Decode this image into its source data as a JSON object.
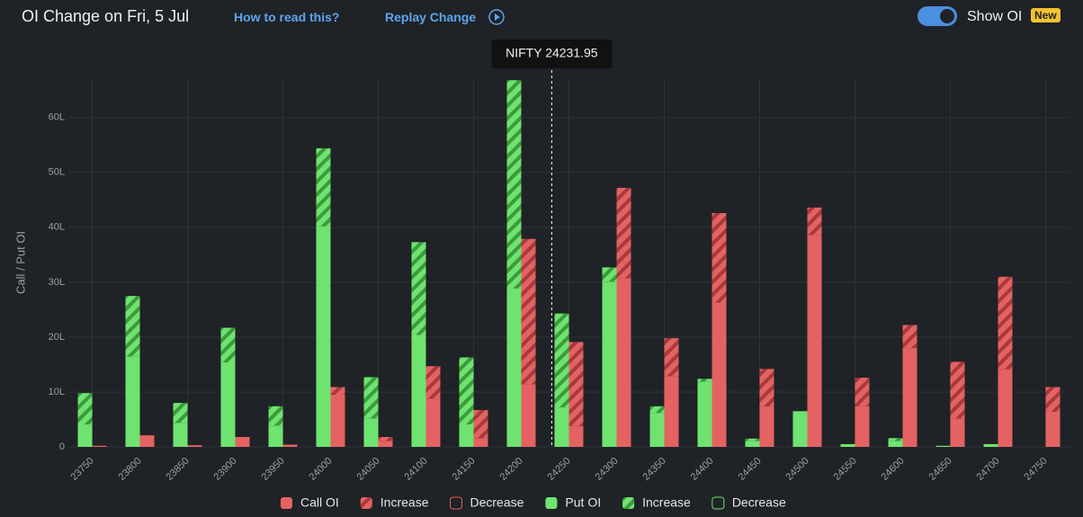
{
  "header": {
    "title": "OI Change on Fri, 5 Jul",
    "help_link": "How to read this?",
    "replay_link": "Replay Change",
    "toggle_label": "Show OI",
    "badge": "New"
  },
  "chart_data": {
    "type": "bar",
    "y_label": "Call / Put OI",
    "categories": [
      "23750",
      "23800",
      "23850",
      "23900",
      "23950",
      "24000",
      "24050",
      "24100",
      "24150",
      "24200",
      "24250",
      "24300",
      "24350",
      "24400",
      "24450",
      "24500",
      "24550",
      "24600",
      "24650",
      "24700",
      "24750"
    ],
    "series": [
      {
        "name": "Call OI",
        "side": "call",
        "style": "solid",
        "color": "#e46262",
        "values": [
          0.2,
          2.1,
          0.3,
          1.8,
          0.4,
          9.5,
          1.1,
          8.8,
          1.6,
          11.4,
          3.8,
          30.7,
          12.9,
          26.3,
          7.4,
          38.6,
          7.4,
          18.0,
          5.2,
          14.2,
          6.4
        ]
      },
      {
        "name": "Increase",
        "side": "call",
        "style": "hatch",
        "color": "#e46262",
        "values": [
          0,
          0,
          0,
          0,
          0,
          1.4,
          0.7,
          5.9,
          5.1,
          26.5,
          15.3,
          16.5,
          6.9,
          16.3,
          6.8,
          5.0,
          5.2,
          4.2,
          10.3,
          16.8,
          4.5
        ]
      },
      {
        "name": "Decrease",
        "side": "call",
        "style": "outline",
        "color": "#e46262",
        "values": [
          0,
          0,
          0,
          0,
          0,
          0,
          0,
          0,
          0,
          0,
          0,
          0,
          0,
          0,
          0,
          0,
          0,
          0,
          0,
          0,
          0
        ]
      },
      {
        "name": "Put OI",
        "side": "put",
        "style": "solid",
        "color": "#6fe36f",
        "values": [
          4.1,
          16.5,
          4.4,
          15.4,
          3.9,
          40.2,
          5.2,
          20.4,
          4.1,
          28.9,
          7.2,
          30.1,
          6.2,
          11.9,
          1.1,
          6.5,
          0.5,
          1.1,
          0.2,
          0.5,
          0
        ]
      },
      {
        "name": "Increase",
        "side": "put",
        "style": "hatch",
        "color": "#6fe36f",
        "values": [
          5.7,
          11.0,
          3.6,
          6.3,
          3.5,
          14.2,
          7.5,
          16.9,
          12.2,
          37.9,
          17.1,
          2.6,
          1.2,
          0.5,
          0.4,
          0,
          0,
          0.5,
          0,
          0,
          0
        ]
      },
      {
        "name": "Decrease",
        "side": "put",
        "style": "outline",
        "color": "#6fe36f",
        "values": [
          0,
          0,
          0,
          0,
          0,
          0,
          0,
          0,
          0,
          0,
          0,
          0,
          0,
          0,
          0,
          0,
          0,
          0,
          0,
          0,
          0
        ]
      }
    ],
    "ylim": [
      0,
      67
    ],
    "yticks": [
      0,
      {
        "value": 10,
        "label": "10L"
      },
      {
        "value": 20,
        "label": "20L"
      },
      {
        "value": 30,
        "label": "30L"
      },
      {
        "value": 40,
        "label": "40L"
      },
      {
        "value": 50,
        "label": "50L"
      },
      {
        "value": 60,
        "label": "60L"
      }
    ],
    "spot": {
      "value": 24231.95,
      "label": "NIFTY 24231.95"
    },
    "grid": true
  }
}
